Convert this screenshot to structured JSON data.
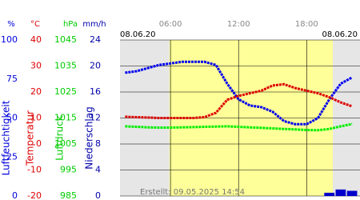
{
  "chart_data": {
    "type": "multi-axis-line",
    "date_start": "08.06.20",
    "date_end": "08.06.20",
    "footer": "Erstellt: 09.05.2025 14:54",
    "xlim": [
      1.55,
      22.7
    ],
    "xticks": [
      {
        "value": 6,
        "label": "06:00"
      },
      {
        "value": 12,
        "label": "12:00"
      },
      {
        "value": 18,
        "label": "18:00"
      }
    ],
    "daylight": [
      5.9,
      20.3
    ],
    "grid": true,
    "axes": [
      {
        "unit": "%",
        "label": "Luftfeuchtigkeit",
        "color": "#0000dd",
        "ylim": [
          0,
          100
        ],
        "yticks": [
          0,
          25,
          50,
          75,
          100
        ]
      },
      {
        "unit": "°C",
        "label": "Temperatur",
        "color": "#dd0000",
        "ylim": [
          -20,
          40
        ],
        "yticks": [
          -20,
          -10,
          0,
          10,
          20,
          30,
          40
        ]
      },
      {
        "unit": "hPa",
        "label": "Luftdruck",
        "color": "#00cc00",
        "ylim": [
          985,
          1045
        ],
        "yticks": [
          985,
          995,
          1005,
          1015,
          1025,
          1035,
          1045
        ]
      },
      {
        "unit": "mm/h",
        "label": "Niederschlag",
        "color": "#0000aa",
        "ylim": [
          0,
          24
        ],
        "yticks": [
          0,
          4,
          8,
          12,
          16,
          20,
          24
        ]
      }
    ],
    "x": [
      2,
      3,
      4,
      5,
      6,
      7,
      8,
      9,
      10,
      11,
      12,
      13,
      14,
      15,
      16,
      17,
      18,
      19,
      20,
      21,
      22
    ],
    "series": [
      {
        "name": "Luftfeuchtigkeit",
        "axis": 0,
        "kind": "line",
        "color": "#0000ee",
        "values": [
          79,
          80,
          82,
          84,
          85,
          86,
          86,
          86,
          84,
          72,
          62,
          58,
          57,
          54,
          48,
          46,
          46,
          50,
          62,
          72,
          76
        ]
      },
      {
        "name": "Temperatur",
        "axis": 1,
        "kind": "line",
        "color": "#dd0000",
        "values": [
          10.5,
          10.3,
          10.2,
          10,
          10,
          10,
          10,
          10.3,
          12,
          17,
          18.5,
          19.5,
          20.5,
          22.5,
          23,
          21.5,
          20.5,
          19.5,
          18,
          16,
          14.5
        ]
      },
      {
        "name": "Luftdruck",
        "axis": 2,
        "kind": "line",
        "color": "#00ee00",
        "values": [
          1011.8,
          1011.6,
          1011.4,
          1011.3,
          1011.3,
          1011.4,
          1011.5,
          1011.6,
          1011.7,
          1011.8,
          1011.6,
          1011.4,
          1011.2,
          1011,
          1010.8,
          1010.6,
          1010.4,
          1010.3,
          1010.8,
          1011.8,
          1012.7
        ]
      },
      {
        "name": "Niederschlag",
        "axis": 3,
        "kind": "bar",
        "color": "#0000cc",
        "values": [
          0,
          0,
          0,
          0,
          0,
          0,
          0,
          0,
          0,
          0,
          0,
          0,
          0,
          0,
          0,
          0,
          0,
          0,
          0.5,
          1,
          0.8
        ]
      }
    ]
  }
}
